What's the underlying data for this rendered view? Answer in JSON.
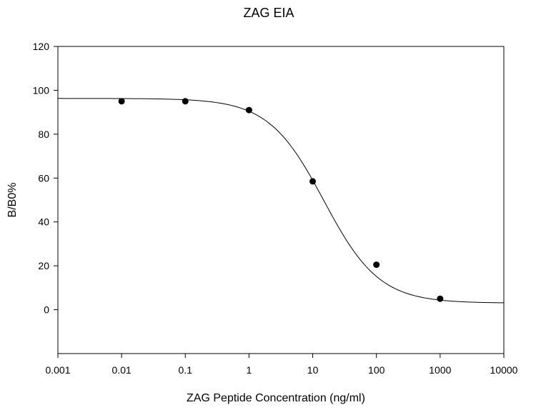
{
  "chart_data": {
    "type": "scatter",
    "title": "ZAG EIA",
    "xlabel": "ZAG Peptide Concentration (ng/ml)",
    "ylabel": "B/B0%",
    "x_scale": "log",
    "xlim": [
      0.001,
      10000
    ],
    "ylim": [
      -20,
      120
    ],
    "x_ticks": [
      "0.001",
      "0.01",
      "0.1",
      "1",
      "10",
      "100",
      "1000",
      "10000"
    ],
    "x_tick_values": [
      0.001,
      0.01,
      0.1,
      1,
      10,
      100,
      1000,
      10000
    ],
    "y_ticks": [
      "0",
      "20",
      "40",
      "60",
      "80",
      "100",
      "120"
    ],
    "y_tick_values": [
      0,
      20,
      40,
      60,
      80,
      100,
      120
    ],
    "grid": false,
    "legend": "none",
    "series": [
      {
        "type": "scatter",
        "x": [
          0.01,
          0.1,
          1,
          10,
          100,
          1000
        ],
        "y": [
          95,
          95,
          91,
          58.5,
          20.5,
          5
        ],
        "color": "#000000"
      },
      {
        "type": "line",
        "fit": "four-parameter logistic",
        "params": {
          "top": 96.3,
          "bottom": 3.0,
          "ec50": 15,
          "slope": 1.0
        },
        "color": "#000000"
      }
    ]
  }
}
